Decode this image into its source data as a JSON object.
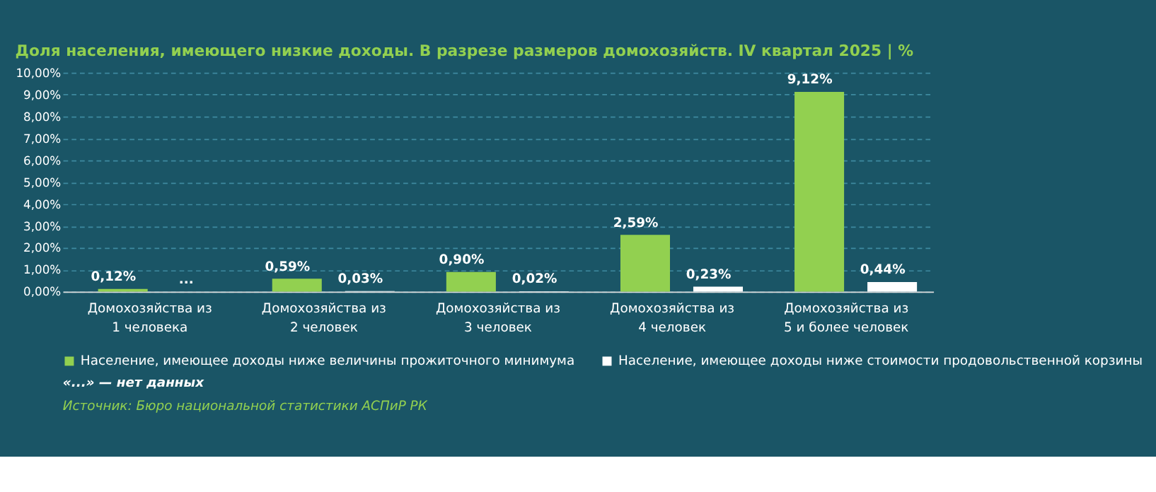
{
  "chart_data": {
    "type": "bar",
    "title": "Доля населения, имеющего низкие доходы. В разрезе размеров домохозяйств. IV квартал 2025 | %",
    "categories": [
      "Домохозяйства из 1 человека",
      "Домохозяйства из 2 человек",
      "Домохозяйства из 3 человек",
      "Домохозяйства из 4 человек",
      "Домохозяйства из 5 и более человек"
    ],
    "series": [
      {
        "name": "Население, имеющее доходы ниже величины прожиточного минимума",
        "color": "#92d050",
        "values": [
          0.12,
          0.59,
          0.9,
          2.59,
          9.12
        ],
        "value_labels": [
          "0,12%",
          "0,59%",
          "0,90%",
          "2,59%",
          "9,12%"
        ]
      },
      {
        "name": "Население, имеющее доходы ниже стоимости продовольственной корзины",
        "color": "#ffffff",
        "values": [
          null,
          0.03,
          0.02,
          0.23,
          0.44
        ],
        "value_labels": [
          "...",
          "0,03%",
          "0,02%",
          "0,23%",
          "0,44%"
        ]
      }
    ],
    "ylim": [
      0,
      10
    ],
    "yticks": [
      {
        "value": 0,
        "label": "0,00%"
      },
      {
        "value": 1,
        "label": "1,00%"
      },
      {
        "value": 2,
        "label": "2,00%"
      },
      {
        "value": 3,
        "label": "3,00%"
      },
      {
        "value": 4,
        "label": "4,00%"
      },
      {
        "value": 5,
        "label": "5,00%"
      },
      {
        "value": 6,
        "label": "6,00%"
      },
      {
        "value": 7,
        "label": "7,00%"
      },
      {
        "value": 8,
        "label": "8,00%"
      },
      {
        "value": 9,
        "label": "9,00%"
      },
      {
        "value": 10,
        "label": "10,00%"
      }
    ],
    "grid": "y",
    "legend": "bottom",
    "annotations": [
      "«...» — нет данных",
      "Источник: Бюро национальной статистики АСПиР РК"
    ]
  }
}
